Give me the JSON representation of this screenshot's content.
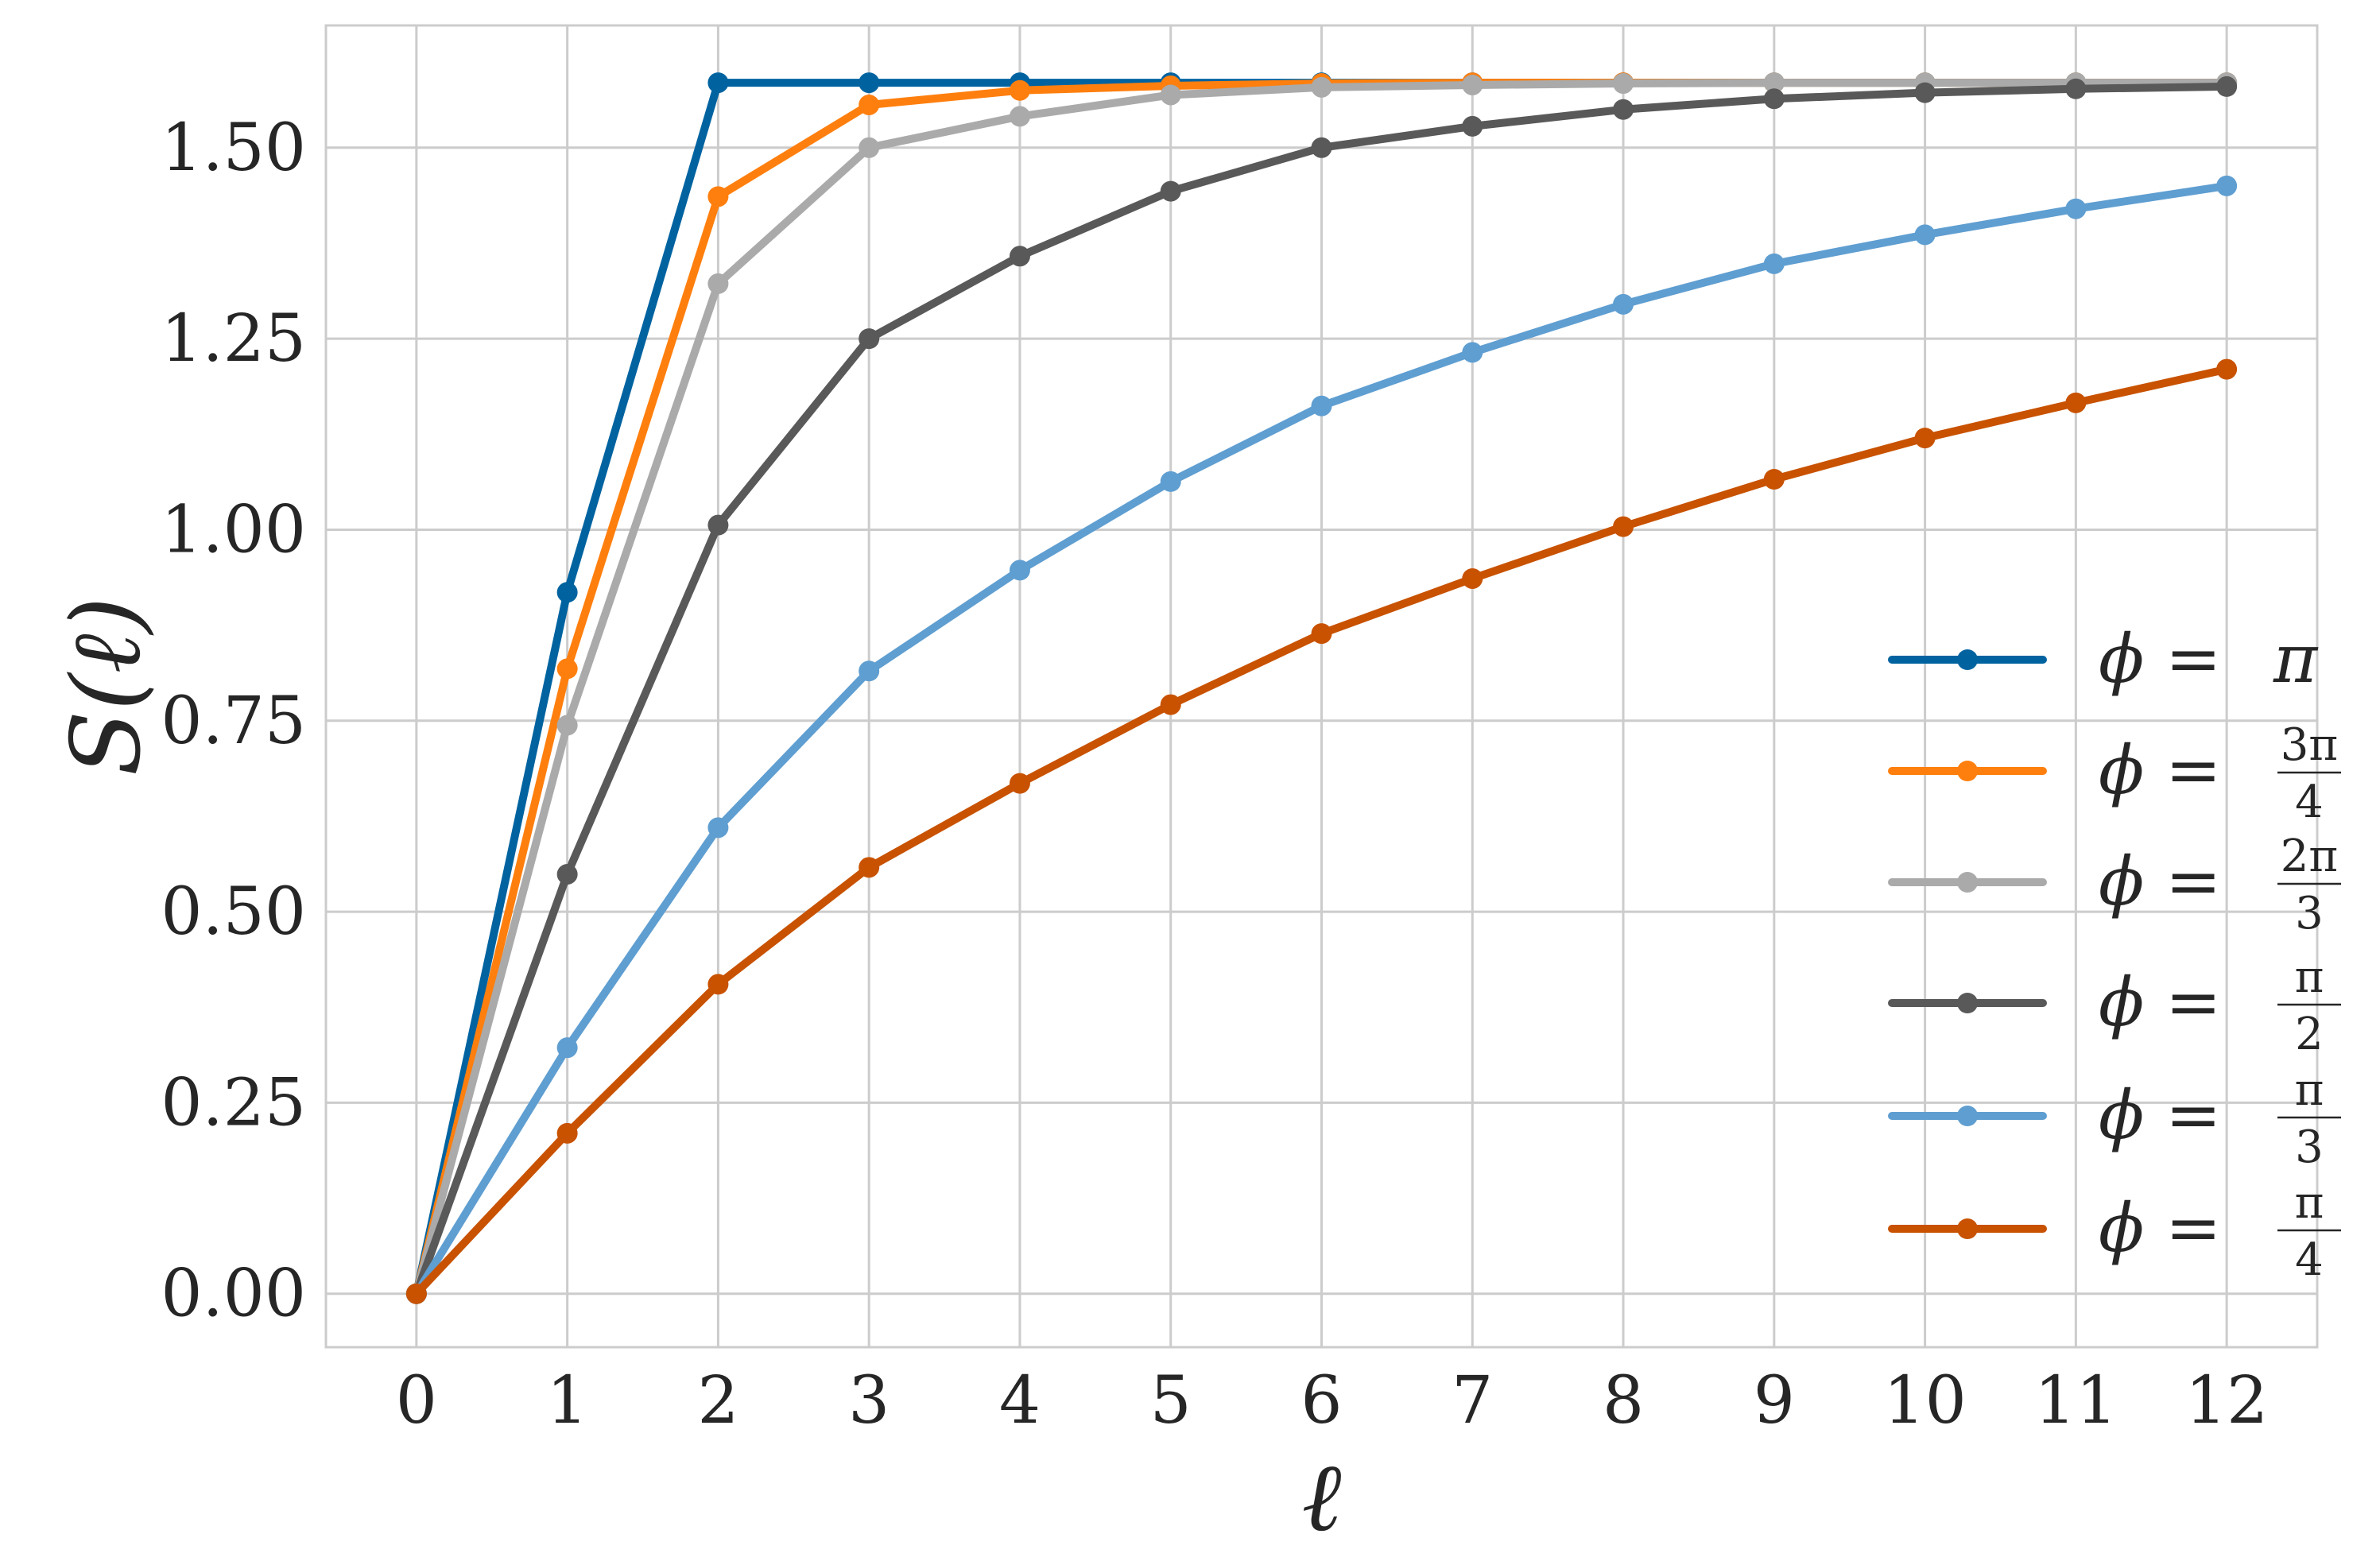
{
  "chart_data": {
    "type": "line",
    "title": "",
    "xlabel": "ℓ",
    "ylabel": "S(ℓ)",
    "xlim": [
      -0.6,
      12.6
    ],
    "ylim": [
      -0.07,
      1.66
    ],
    "xticks": [
      0,
      1,
      2,
      3,
      4,
      5,
      6,
      7,
      8,
      9,
      10,
      11,
      12
    ],
    "xtick_labels": [
      "0",
      "1",
      "2",
      "3",
      "4",
      "5",
      "6",
      "7",
      "8",
      "9",
      "10",
      "11",
      "12"
    ],
    "yticks": [
      0.0,
      0.25,
      0.5,
      0.75,
      1.0,
      1.25,
      1.5
    ],
    "ytick_labels": [
      "0.00",
      "0.25",
      "0.50",
      "0.75",
      "1.00",
      "1.25",
      "1.50"
    ],
    "grid": true,
    "legend_position": "right",
    "x": [
      0,
      1,
      2,
      3,
      4,
      5,
      6,
      7,
      8,
      9,
      10,
      11,
      12
    ],
    "series": [
      {
        "name": "ϕ = π",
        "legend": {
          "lhs": "ϕ = ",
          "value": "π"
        },
        "color": "#0063a0",
        "values": [
          0.0,
          0.918,
          1.585,
          1.585,
          1.585,
          1.585,
          1.585,
          1.585,
          1.585,
          1.585,
          1.585,
          1.585,
          1.585
        ]
      },
      {
        "name": "ϕ = 3π/4",
        "legend": {
          "lhs": "ϕ = ",
          "num": "3π",
          "den": "4"
        },
        "color": "#ff7f0e",
        "values": [
          0.0,
          0.818,
          1.436,
          1.556,
          1.575,
          1.581,
          1.584,
          1.585,
          1.585,
          1.585,
          1.585,
          1.585,
          1.585
        ]
      },
      {
        "name": "ϕ = 2π/3",
        "legend": {
          "lhs": "ϕ = ",
          "num": "2π",
          "den": "3"
        },
        "color": "#aaaaaa",
        "values": [
          0.0,
          0.744,
          1.322,
          1.5,
          1.541,
          1.569,
          1.579,
          1.582,
          1.584,
          1.585,
          1.585,
          1.585,
          1.585
        ]
      },
      {
        "name": "ϕ = π/2",
        "legend": {
          "lhs": "ϕ = ",
          "num": "π",
          "den": "2"
        },
        "color": "#595959",
        "values": [
          0.0,
          0.549,
          1.006,
          1.25,
          1.358,
          1.443,
          1.5,
          1.528,
          1.55,
          1.564,
          1.572,
          1.577,
          1.58
        ]
      },
      {
        "name": "ϕ = π/3",
        "legend": {
          "lhs": "ϕ = ",
          "num": "π",
          "den": "3"
        },
        "color": "#5f9ed1",
        "values": [
          0.0,
          0.322,
          0.61,
          0.815,
          0.947,
          1.063,
          1.162,
          1.232,
          1.295,
          1.348,
          1.386,
          1.42,
          1.45
        ]
      },
      {
        "name": "ϕ = π/4",
        "legend": {
          "lhs": "ϕ = ",
          "num": "π",
          "den": "4"
        },
        "color": "#c85200",
        "values": [
          0.0,
          0.21,
          0.405,
          0.558,
          0.668,
          0.771,
          0.864,
          0.936,
          1.004,
          1.066,
          1.12,
          1.166,
          1.21
        ]
      }
    ]
  },
  "colors": {
    "grid": "#cccccc",
    "frame": "#cccccc",
    "text": "#262626"
  }
}
